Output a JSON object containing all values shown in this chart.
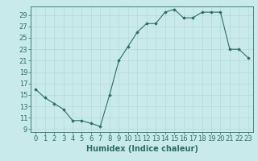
{
  "x": [
    0,
    1,
    2,
    3,
    4,
    5,
    6,
    7,
    8,
    9,
    10,
    11,
    12,
    13,
    14,
    15,
    16,
    17,
    18,
    19,
    20,
    21,
    22,
    23
  ],
  "y": [
    16,
    14.5,
    13.5,
    12.5,
    10.5,
    10.5,
    10,
    9.5,
    15,
    21,
    23.5,
    26,
    27.5,
    27.5,
    29.5,
    30,
    28.5,
    28.5,
    29.5,
    29.5,
    29.5,
    23,
    23,
    21.5
  ],
  "line_color": "#2e6e65",
  "marker": "D",
  "marker_size": 1.8,
  "bg_color": "#c8eaea",
  "grid_color": "#b8d8d8",
  "xlabel": "Humidex (Indice chaleur)",
  "xlabel_fontsize": 7,
  "ytick_labels": [
    "9",
    "11",
    "13",
    "15",
    "17",
    "19",
    "21",
    "23",
    "25",
    "27",
    "29"
  ],
  "ytick_values": [
    9,
    11,
    13,
    15,
    17,
    19,
    21,
    23,
    25,
    27,
    29
  ],
  "ylim": [
    8.5,
    30.5
  ],
  "xlim": [
    -0.5,
    23.5
  ],
  "tick_fontsize": 6
}
